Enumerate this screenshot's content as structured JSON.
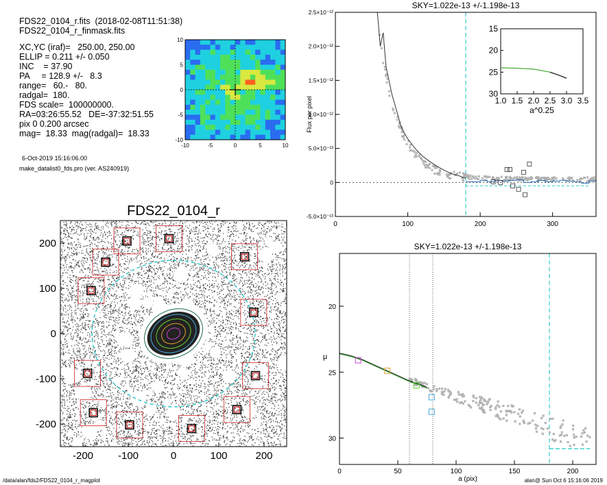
{
  "header": {
    "file_line": "FDS22_0104_r.fits  (2018-02-08T11:51:38)",
    "mask_line": "FDS22_0104_r_finmask.fits",
    "params": [
      "XC,YC (iraf)=   250.00, 250.00",
      "ELLIP = 0.211 +/- 0.050",
      "INC    = 37.90",
      "PA     = 128.9 +/-   8.3",
      "range=   60.-   80.",
      "radgal=  180.",
      "FDS scale=  100000000.",
      "RA=03:26:55.52   DE=-37:32:51.55",
      "pix 0 0.200 arcsec",
      "mag=  18.33  mag(radgal)=  18.33"
    ],
    "date": "6-Oct-2019 15:16:06.00",
    "program": "make_datalist0_fds.pro (ver. AS240919)"
  },
  "footer": {
    "path": "/data/alan/fds2/FDS22_0104_r_magplot",
    "stamp": "alan@  Sun Oct  6 15:16:06 2019"
  },
  "colors": {
    "cyan": "#33cccc",
    "mask_red": "#cc2222",
    "green": "#33aa33",
    "grey_point": "#999999"
  },
  "chart_data": [
    {
      "type": "heatmap",
      "title": "",
      "xlim": [
        -10,
        10
      ],
      "ylim": [
        -10,
        10
      ],
      "xticks": [
        "-10",
        "-5",
        "0",
        "5",
        "10"
      ],
      "yticks": [
        "10",
        "5",
        "0",
        "-5",
        "-10"
      ],
      "colormap": [
        "#1a1aaa",
        "#2a6cf0",
        "#1fd0e0",
        "#4fe05a",
        "#d8e840",
        "#ff6020"
      ]
    },
    {
      "type": "scatter",
      "title": "FDS22_0104_r",
      "xlim": [
        -250,
        250
      ],
      "ylim": [
        -250,
        250
      ],
      "xticks": [
        "-200",
        "-100",
        "0",
        "100",
        "200"
      ],
      "yticks": [
        "200",
        "100",
        "0",
        "-100",
        "-200"
      ],
      "galaxy_center": [
        0,
        0
      ],
      "radgal_circle": 180,
      "masked_stars": [
        [
          -103,
          205
        ],
        [
          -10,
          210
        ],
        [
          -150,
          158
        ],
        [
          -182,
          95
        ],
        [
          -190,
          -88
        ],
        [
          -177,
          -175
        ],
        [
          -97,
          -202
        ],
        [
          40,
          -210
        ],
        [
          157,
          170
        ],
        [
          177,
          47
        ],
        [
          181,
          -93
        ],
        [
          140,
          -168
        ]
      ]
    },
    {
      "type": "scatter",
      "title": "SKY=1.022e-13 +/-1.198e-13",
      "xlabel": "",
      "ylabel": "Flux per pixel",
      "xlim": [
        0,
        360
      ],
      "ylim": [
        -5e-13,
        2.5e-12
      ],
      "xticks": [
        "0",
        "100",
        "200",
        "300"
      ],
      "yticks": [
        "2.5×10⁻¹²",
        "2.0×10⁻¹²",
        "1.5×10⁻¹²",
        "1.0×10⁻¹²",
        "5.0×10⁻¹³",
        "0",
        "-5.0×10⁻¹³"
      ],
      "radgal": 180,
      "profile_line": [
        [
          58,
          2.5e-12
        ],
        [
          62,
          2e-12
        ],
        [
          66,
          2.2e-12
        ],
        [
          70,
          1.7e-12
        ],
        [
          74,
          1.5e-12
        ],
        [
          78,
          1.3e-12
        ],
        [
          82,
          1.15e-12
        ],
        [
          86,
          1e-12
        ],
        [
          90,
          8.5e-13
        ],
        [
          94,
          7.5e-13
        ],
        [
          100,
          6.4e-13
        ],
        [
          110,
          5e-13
        ],
        [
          120,
          3.9e-13
        ],
        [
          130,
          3.1e-13
        ],
        [
          140,
          2.4e-13
        ],
        [
          150,
          1.8e-13
        ],
        [
          160,
          1.3e-13
        ],
        [
          170,
          1e-13
        ],
        [
          180,
          6e-14
        ]
      ],
      "sky_steps": [
        [
          180,
          1e-14
        ],
        [
          190,
          1e-14
        ],
        [
          200,
          3e-14
        ],
        [
          210,
          1e-14
        ],
        [
          220,
          3e-14
        ],
        [
          230,
          2e-14
        ],
        [
          240,
          3e-14
        ],
        [
          250,
          4e-14
        ],
        [
          260,
          0
        ],
        [
          270,
          1e-14
        ],
        [
          280,
          3e-14
        ],
        [
          290,
          1e-14
        ],
        [
          300,
          2e-14
        ],
        [
          310,
          3e-14
        ],
        [
          320,
          2e-14
        ],
        [
          330,
          1e-14
        ],
        [
          340,
          -1e-14
        ],
        [
          350,
          2e-14
        ],
        [
          360,
          2e-14
        ]
      ],
      "boxes": [
        [
          237,
          1.9e-13
        ],
        [
          241,
          1.9e-13
        ],
        [
          268,
          2.7e-13
        ],
        [
          260,
          1.5e-13
        ],
        [
          245,
          -5e-14
        ],
        [
          253,
          -1e-13
        ],
        [
          262,
          -1.8e-13
        ],
        [
          228,
          0
        ],
        [
          218,
          1e-14
        ]
      ],
      "inset": {
        "xlabel": "a^0.25",
        "xlim": [
          1.0,
          3.5
        ],
        "ylim": [
          30,
          15
        ],
        "xticks": [
          "1.0",
          "1.5",
          "2.0",
          "2.5",
          "3.0",
          "3.5"
        ],
        "yticks": [
          "15",
          "20",
          "25",
          "30"
        ],
        "curve": [
          [
            1.0,
            24.0
          ],
          [
            1.5,
            24.1
          ],
          [
            2.0,
            24.3
          ],
          [
            2.5,
            25.0
          ],
          [
            2.8,
            25.8
          ],
          [
            3.0,
            26.4
          ]
        ]
      }
    },
    {
      "type": "line",
      "title": "SKY=1.022e-13 +/-1.198e-13",
      "xlabel": "a (pix)",
      "ylabel": "μ",
      "xlim": [
        0,
        220
      ],
      "ylim": [
        32,
        16
      ],
      "xticks": [
        "0",
        "50",
        "100",
        "150",
        "200"
      ],
      "yticks": [
        "20",
        "25",
        "30"
      ],
      "range_lines": [
        60,
        80
      ],
      "radgal": 180,
      "sky_level_mu": 30.8,
      "profile_line": [
        [
          0,
          23.6
        ],
        [
          10,
          23.8
        ],
        [
          20,
          24.1
        ],
        [
          30,
          24.5
        ],
        [
          40,
          24.9
        ],
        [
          50,
          25.3
        ],
        [
          60,
          25.7
        ],
        [
          70,
          26.0
        ],
        [
          75,
          26.2
        ]
      ],
      "isophote_boxes": [
        {
          "x": 16,
          "y": 24.1,
          "color": "#cc44cc"
        },
        {
          "x": 41,
          "y": 24.9,
          "color": "#e0a030"
        },
        {
          "x": 66,
          "y": 26.0,
          "color": "#66cc33"
        },
        {
          "x": 79,
          "y": 26.9,
          "color": "#44aadd"
        },
        {
          "x": 79,
          "y": 28.0,
          "color": "#44aadd"
        }
      ]
    }
  ]
}
